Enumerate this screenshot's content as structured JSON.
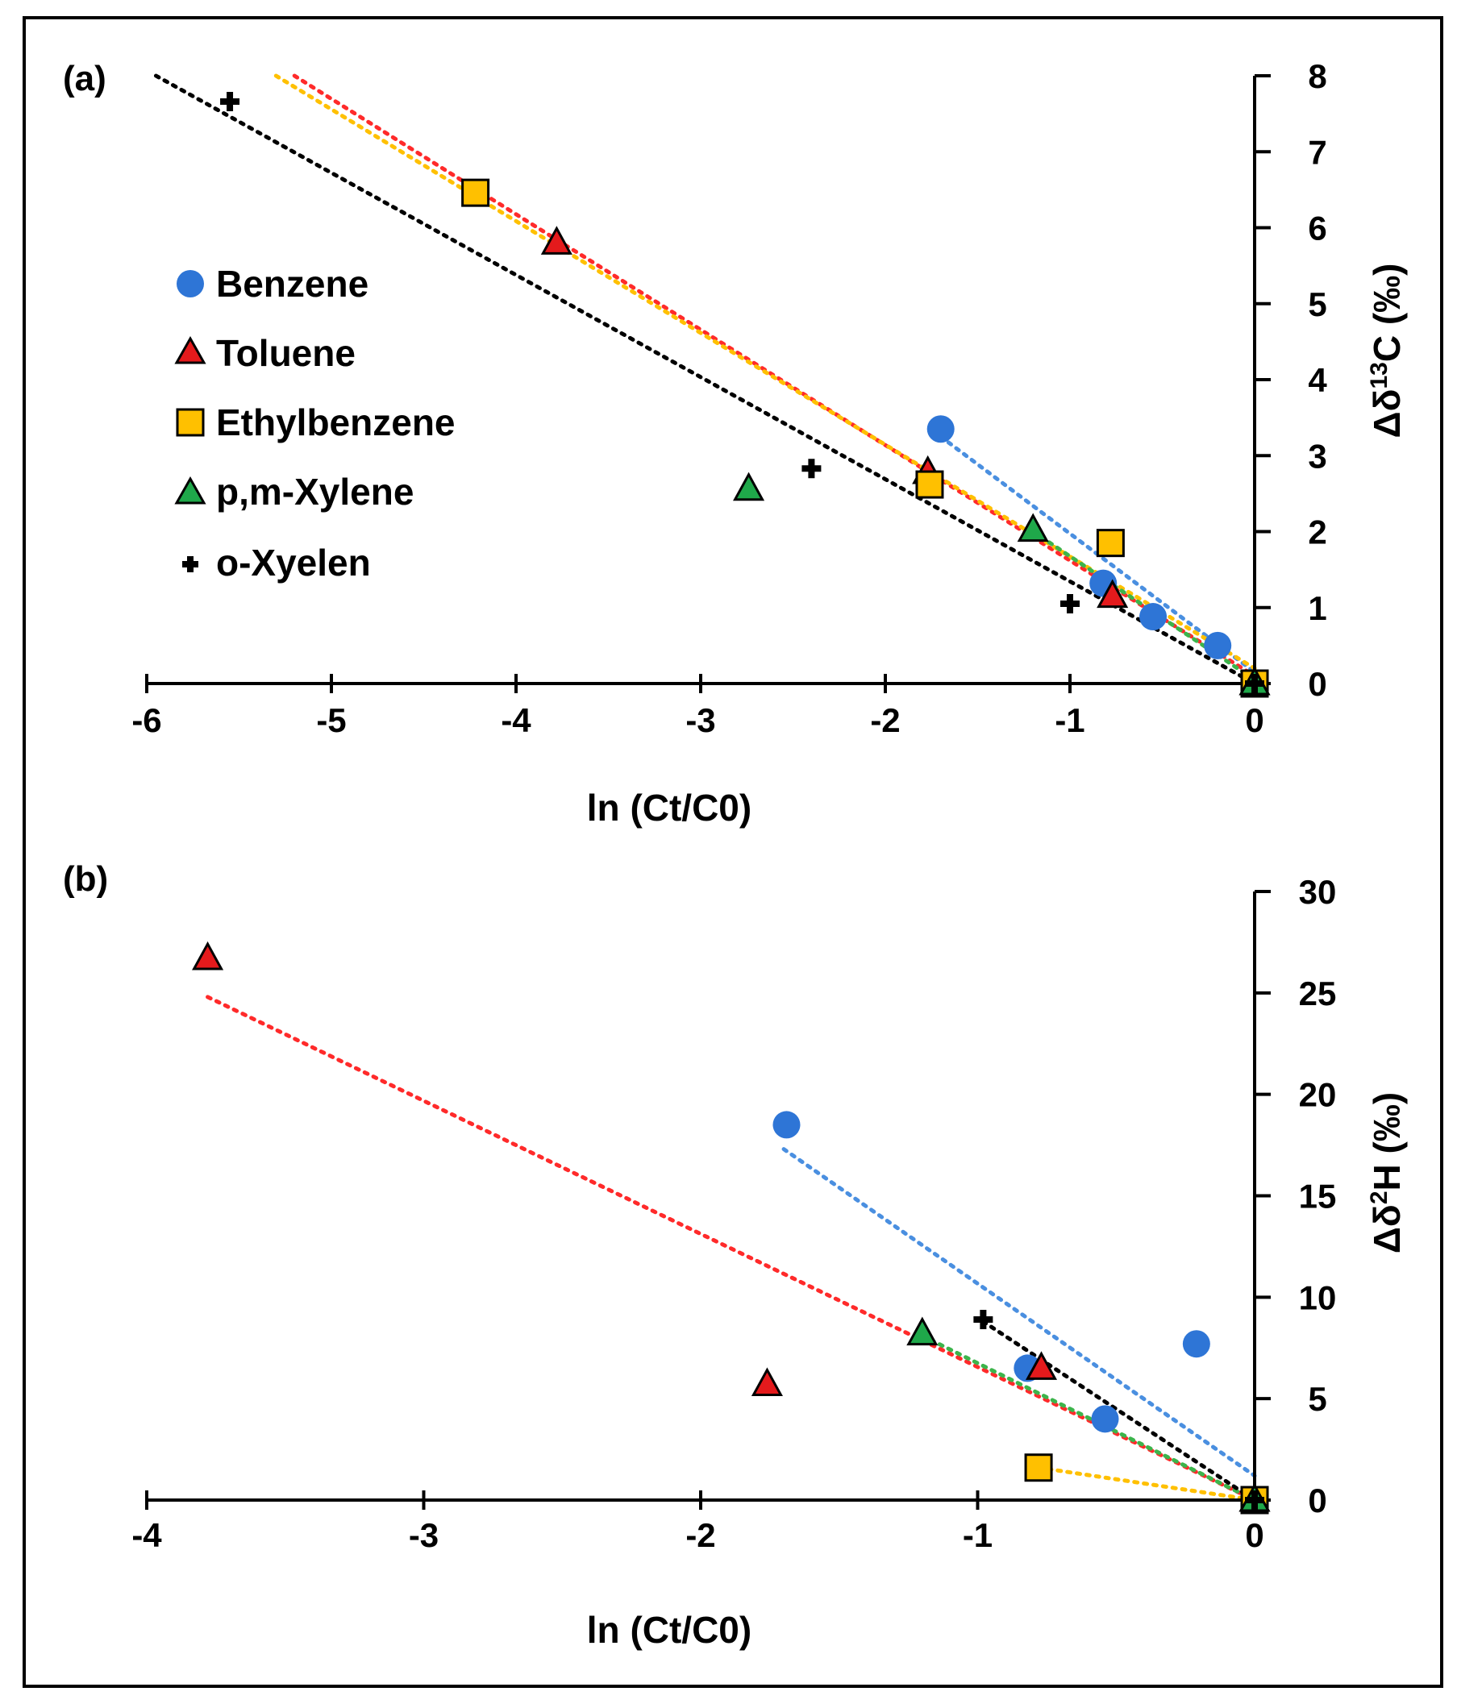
{
  "colors": {
    "benzene": "#2E75D6",
    "toluene": "#E41A1C",
    "ethylbenzene": "#FFC000",
    "xylene_pm": "#1FA84A",
    "xylene_o": "#000000",
    "trend_benzene": "#4A8FE0",
    "trend_toluene": "#FF2A2A",
    "trend_ethylbenzene": "#FFC000",
    "trend_xylene_pm": "#3CB44B",
    "trend_xylene_o": "#000000"
  },
  "legend": [
    {
      "key": "benzene",
      "label": "Benzene",
      "marker": "circle"
    },
    {
      "key": "toluene",
      "label": "Toluene",
      "marker": "triangle"
    },
    {
      "key": "ethylbenzene",
      "label": "Ethylbenzene",
      "marker": "square"
    },
    {
      "key": "xylene_pm",
      "label": "p,m-Xylene",
      "marker": "triangle"
    },
    {
      "key": "xylene_o",
      "label": "o-Xyelen",
      "marker": "plus"
    }
  ],
  "chart_data": [
    {
      "panel": "(a)",
      "type": "scatter",
      "xlabel": "ln (Ct/C0)",
      "ylabel_main": "Δδ",
      "ylabel_sup": "13",
      "ylabel_rest": "C (‰)",
      "xlim": [
        -6,
        0
      ],
      "ylim": [
        0,
        8
      ],
      "xticks": [
        -6,
        -5,
        -4,
        -3,
        -2,
        -1,
        0
      ],
      "yticks": [
        0,
        1,
        2,
        3,
        4,
        5,
        6,
        7,
        8
      ],
      "series": [
        {
          "key": "benzene",
          "name": "Benzene",
          "points": [
            [
              -1.7,
              3.35
            ],
            [
              -0.82,
              1.32
            ],
            [
              -0.55,
              0.88
            ],
            [
              -0.2,
              0.5
            ],
            [
              0,
              0
            ]
          ]
        },
        {
          "key": "toluene",
          "name": "Toluene",
          "points": [
            [
              -3.78,
              5.8
            ],
            [
              -1.77,
              2.78
            ],
            [
              -0.77,
              1.15
            ],
            [
              0,
              0
            ]
          ]
        },
        {
          "key": "ethylbenzene",
          "name": "Ethylbenzene",
          "points": [
            [
              -4.22,
              6.46
            ],
            [
              -1.76,
              2.62
            ],
            [
              -0.78,
              1.85
            ],
            [
              0,
              0
            ]
          ]
        },
        {
          "key": "xylene_pm",
          "name": "p,m-Xylene",
          "points": [
            [
              -2.74,
              2.56
            ],
            [
              -1.2,
              2.02
            ],
            [
              0,
              0
            ]
          ]
        },
        {
          "key": "xylene_o",
          "name": "o-Xyelen",
          "points": [
            [
              -5.55,
              7.66
            ],
            [
              -2.4,
              2.83
            ],
            [
              -1,
              1.05
            ],
            [
              0,
              0
            ]
          ]
        }
      ],
      "trendlines": [
        {
          "key": "benzene",
          "from": [
            -1.7,
            3.25
          ],
          "to": [
            0,
            0.15
          ]
        },
        {
          "key": "toluene",
          "from": [
            -5.2,
            8.0
          ],
          "to": [
            0,
            0.1
          ]
        },
        {
          "key": "ethylbenzene",
          "from": [
            -5.3,
            8.0
          ],
          "to": [
            0,
            0.2
          ]
        },
        {
          "key": "xylene_pm",
          "from": [
            -1.2,
            2.0
          ],
          "to": [
            0,
            0.05
          ]
        },
        {
          "key": "xylene_o",
          "from": [
            -5.95,
            8.0
          ],
          "to": [
            0,
            0
          ]
        }
      ]
    },
    {
      "panel": "(b)",
      "type": "scatter",
      "xlabel": "ln (Ct/C0)",
      "ylabel_main": "Δδ",
      "ylabel_sup": "2",
      "ylabel_rest": "H (‰)",
      "xlim": [
        -4,
        0
      ],
      "ylim": [
        0,
        30
      ],
      "xticks": [
        -4,
        -3,
        -2,
        -1,
        0
      ],
      "yticks": [
        0,
        5,
        10,
        15,
        20,
        25,
        30
      ],
      "series": [
        {
          "key": "benzene",
          "name": "Benzene",
          "points": [
            [
              -1.69,
              18.5
            ],
            [
              -0.82,
              6.5
            ],
            [
              -0.54,
              4.0
            ],
            [
              -0.21,
              7.7
            ],
            [
              0,
              0
            ]
          ]
        },
        {
          "key": "toluene",
          "name": "Toluene",
          "points": [
            [
              -3.78,
              26.7
            ],
            [
              -1.76,
              5.7
            ],
            [
              -0.77,
              6.5
            ],
            [
              0,
              0
            ]
          ]
        },
        {
          "key": "ethylbenzene",
          "name": "Ethylbenzene",
          "points": [
            [
              -0.78,
              1.6
            ],
            [
              0,
              0
            ]
          ]
        },
        {
          "key": "xylene_pm",
          "name": "p,m-Xylene",
          "points": [
            [
              -1.2,
              8.2
            ],
            [
              0,
              0
            ]
          ]
        },
        {
          "key": "xylene_o",
          "name": "o-Xyelen",
          "points": [
            [
              -0.98,
              8.9
            ],
            [
              0,
              0
            ]
          ]
        }
      ],
      "trendlines": [
        {
          "key": "benzene",
          "from": [
            -1.7,
            17.3
          ],
          "to": [
            0,
            1.2
          ]
        },
        {
          "key": "toluene",
          "from": [
            -3.78,
            24.8
          ],
          "to": [
            0,
            0
          ]
        },
        {
          "key": "ethylbenzene",
          "from": [
            -0.78,
            1.6
          ],
          "to": [
            0,
            0
          ]
        },
        {
          "key": "xylene_pm",
          "from": [
            -1.2,
            8.1
          ],
          "to": [
            0,
            0
          ]
        },
        {
          "key": "xylene_o",
          "from": [
            -0.98,
            8.8
          ],
          "to": [
            0,
            0
          ]
        }
      ]
    }
  ]
}
